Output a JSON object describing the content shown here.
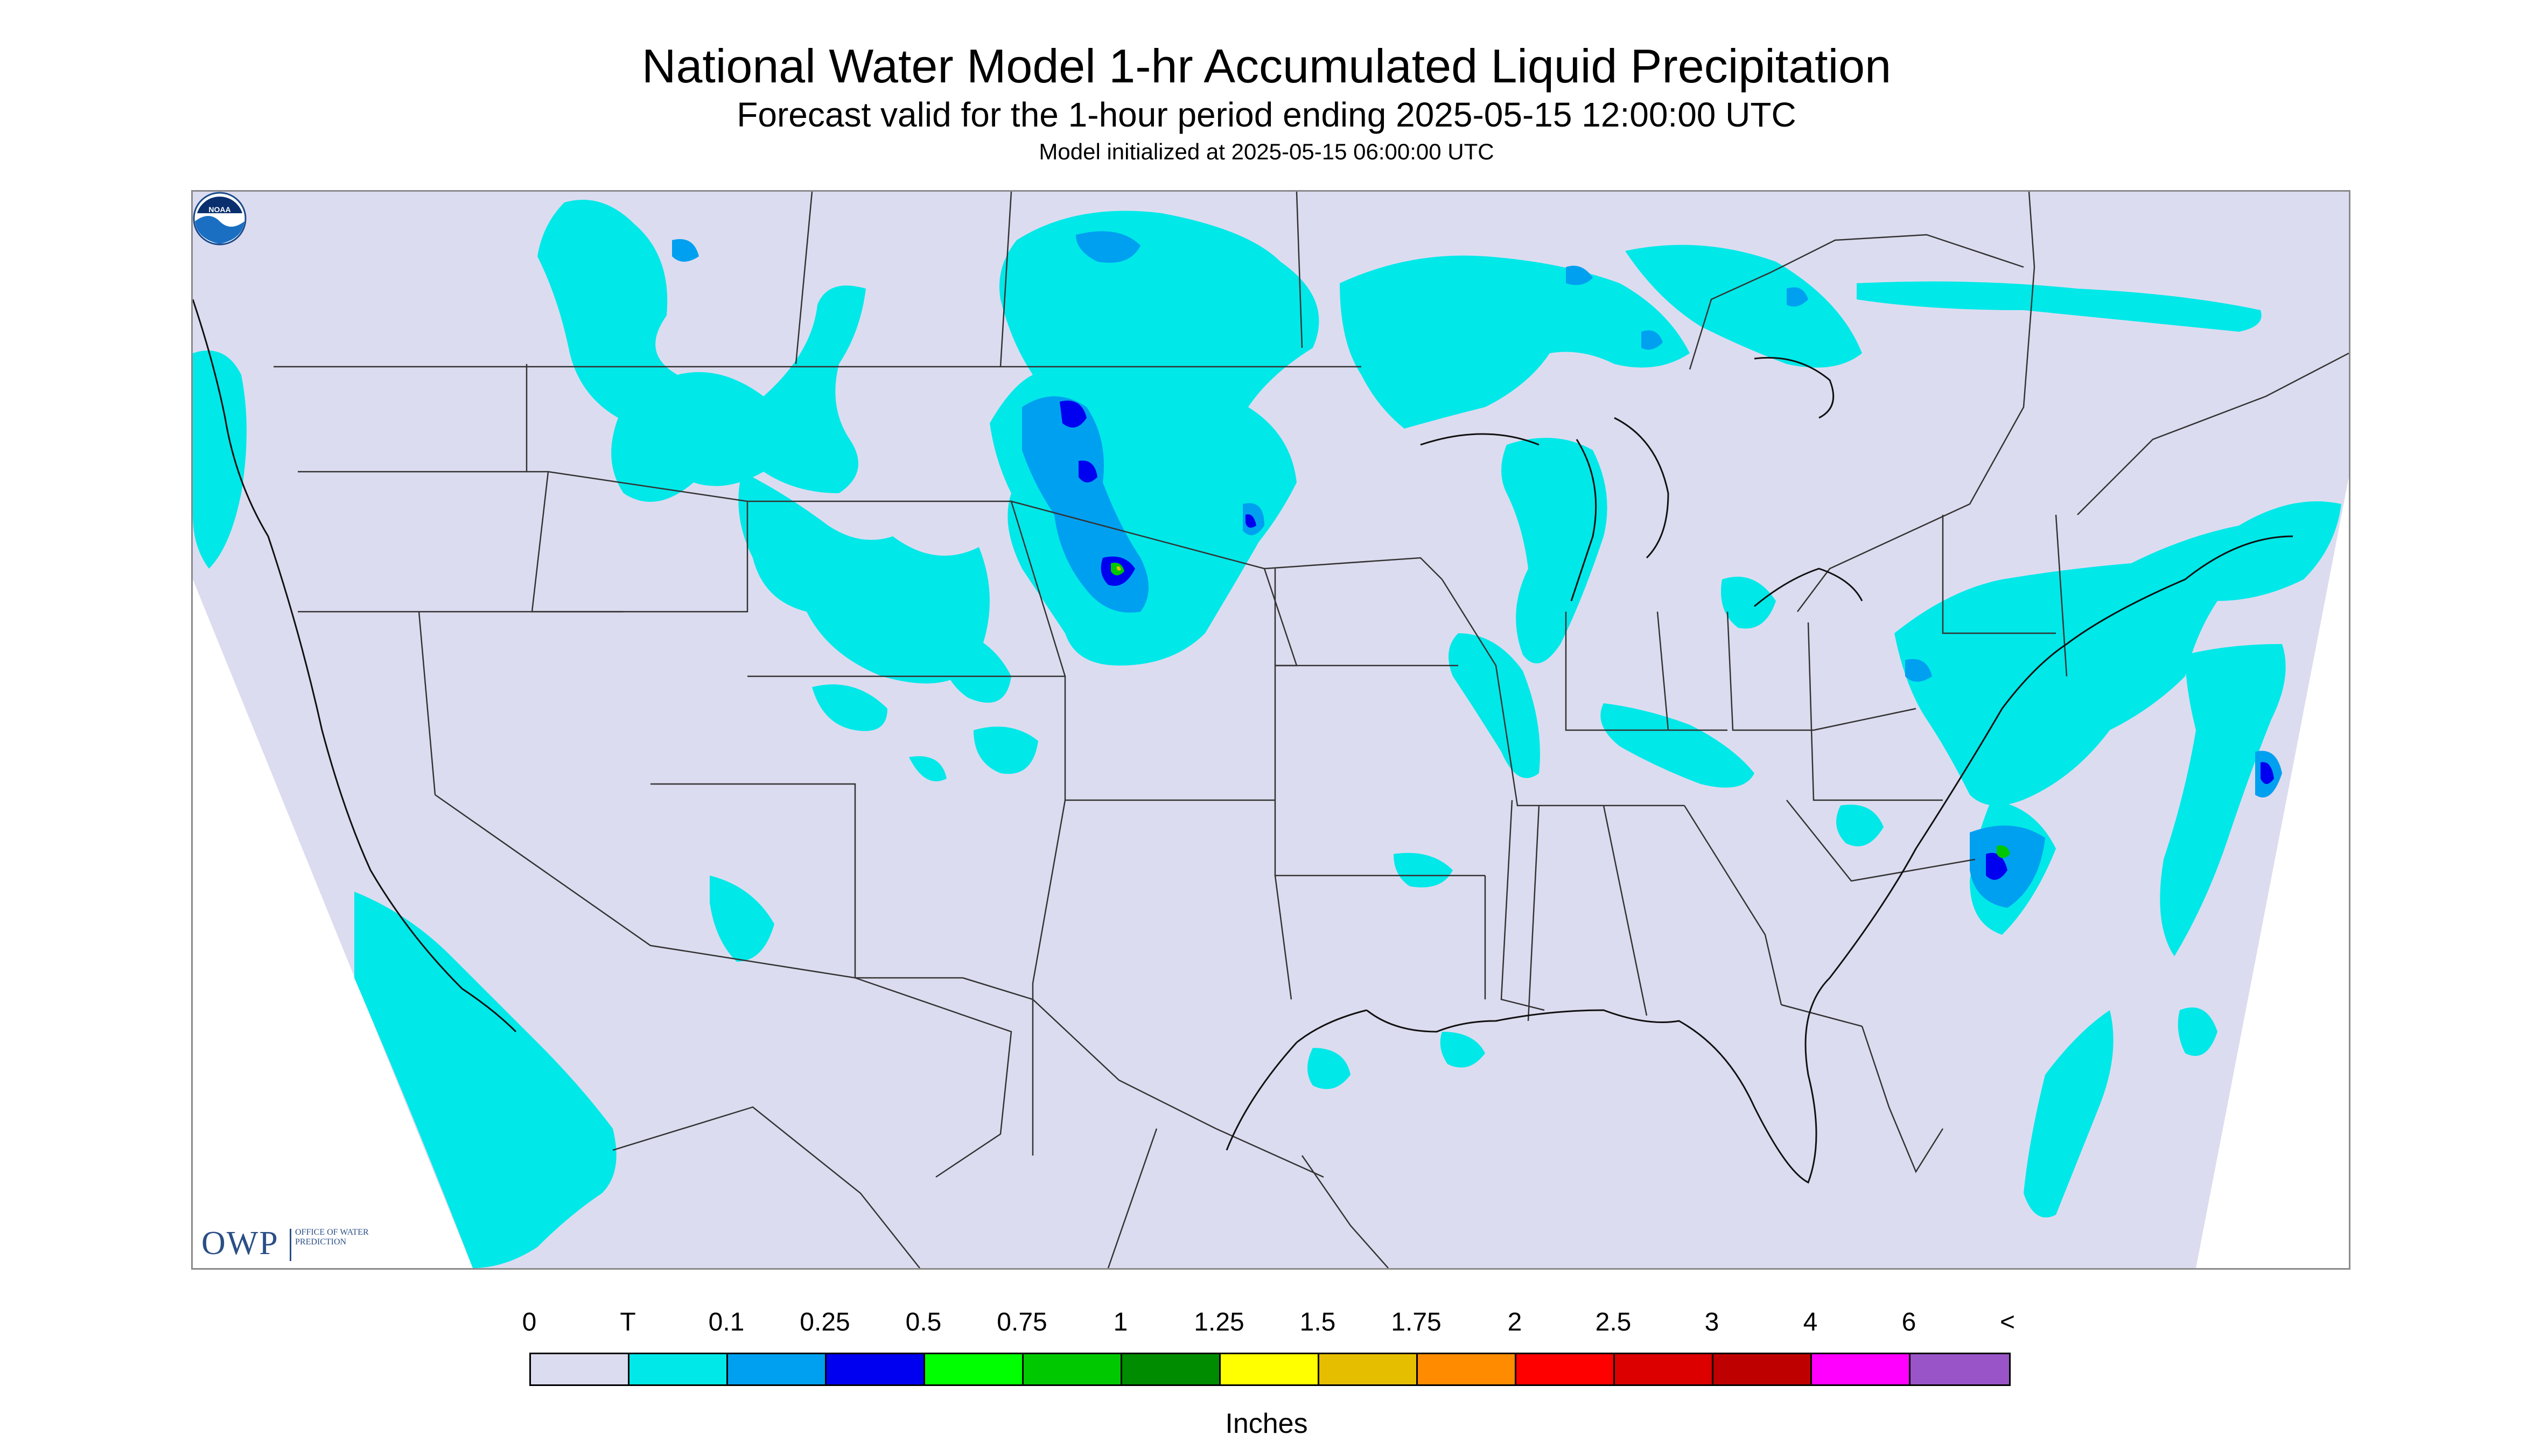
{
  "title": "National Water Model 1-hr Accumulated Liquid Precipitation",
  "subtitle": "Forecast valid for the 1-hour period ending 2025-05-15 12:00:00 UTC",
  "init_line": "Model initialized at 2025-05-15 06:00:00 UTC",
  "legend": {
    "labels": [
      "0",
      "T",
      "0.1",
      "0.25",
      "0.5",
      "0.75",
      "1",
      "1.25",
      "1.5",
      "1.75",
      "2",
      "2.5",
      "3",
      "4",
      "6",
      "<"
    ],
    "colors": [
      "#dcdcf0",
      "#00e8e8",
      "#00a0f0",
      "#0000f0",
      "#00ff00",
      "#00c800",
      "#008c00",
      "#ffff00",
      "#e6be00",
      "#ff8c00",
      "#ff0000",
      "#dc0000",
      "#be0000",
      "#ff00ff",
      "#9955c8"
    ],
    "units": "Inches"
  },
  "logos": {
    "owp_abbrev": "OWP",
    "owp_full": "OFFICE OF WATER PREDICTION",
    "noaa": "NOAA"
  },
  "colors": {
    "map_background": "#dcdcf0",
    "precip_trace": "#00e8e8",
    "precip_light": "#00a0f0",
    "precip_heavy": "#0000f0",
    "boundary_lines": "#333333"
  }
}
